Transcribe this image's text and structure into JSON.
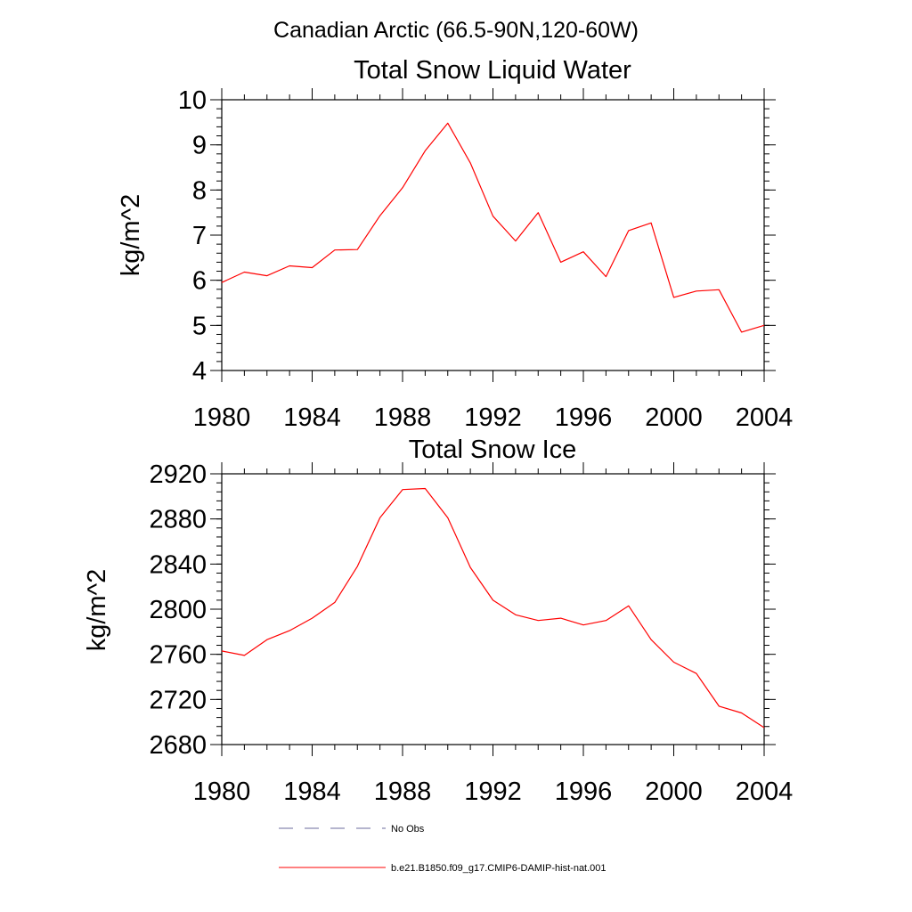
{
  "figure": {
    "suptitle": "Canadian Arctic (66.5-90N,120-60W)"
  },
  "chart_data": [
    {
      "type": "line",
      "title": "Total Snow Liquid Water",
      "xlabel": "",
      "ylabel": "kg/m^2",
      "xlim": [
        1980,
        2004
      ],
      "ylim": [
        4,
        10
      ],
      "x_ticks": [
        1980,
        1984,
        1988,
        1992,
        1996,
        2000,
        2004
      ],
      "y_ticks": [
        4,
        5,
        6,
        7,
        8,
        9,
        10
      ],
      "y_minor_step": 0.2,
      "x_minor_step": 1,
      "grid": false,
      "series": [
        {
          "name": "b.e21.B1850.f09_g17.CMIP6-DAMIP-hist-nat.001",
          "color": "#ff0000",
          "x": [
            1980,
            1981,
            1982,
            1983,
            1984,
            1985,
            1986,
            1987,
            1988,
            1989,
            1990,
            1991,
            1992,
            1993,
            1994,
            1995,
            1996,
            1997,
            1998,
            1999,
            2000,
            2001,
            2002,
            2003,
            2004
          ],
          "y": [
            5.95,
            6.18,
            6.1,
            6.32,
            6.28,
            6.67,
            6.68,
            7.43,
            8.05,
            8.87,
            9.48,
            8.6,
            7.42,
            6.87,
            7.5,
            6.4,
            6.63,
            6.08,
            7.1,
            7.27,
            5.62,
            5.76,
            5.79,
            4.85,
            5.0
          ]
        }
      ]
    },
    {
      "type": "line",
      "title": "Total Snow Ice",
      "xlabel": "",
      "ylabel": "kg/m^2",
      "xlim": [
        1980,
        2004
      ],
      "ylim": [
        2680,
        2920
      ],
      "x_ticks": [
        1980,
        1984,
        1988,
        1992,
        1996,
        2000,
        2004
      ],
      "y_ticks": [
        2680,
        2720,
        2760,
        2800,
        2840,
        2880,
        2920
      ],
      "y_minor_step": 8,
      "x_minor_step": 1,
      "grid": false,
      "series": [
        {
          "name": "b.e21.B1850.f09_g17.CMIP6-DAMIP-hist-nat.001",
          "color": "#ff0000",
          "x": [
            1980,
            1981,
            1982,
            1983,
            1984,
            1985,
            1986,
            1987,
            1988,
            1989,
            1990,
            1991,
            1992,
            1993,
            1994,
            1995,
            1996,
            1997,
            1998,
            1999,
            2000,
            2001,
            2002,
            2003,
            2004
          ],
          "y": [
            2763,
            2759,
            2773,
            2781,
            2792,
            2806,
            2838,
            2881,
            2906,
            2907,
            2881,
            2837,
            2808,
            2795,
            2790,
            2792,
            2786,
            2790,
            2803,
            2773,
            2753,
            2743,
            2714,
            2708,
            2695
          ]
        }
      ]
    }
  ],
  "legend": {
    "placement": "bottom",
    "entries": [
      {
        "label": "No Obs",
        "color": "#6b6b9e",
        "style": "dashed"
      },
      {
        "label": "b.e21.B1850.f09_g17.CMIP6-DAMIP-hist-nat.001",
        "color": "#ff0000",
        "style": "solid"
      }
    ]
  }
}
